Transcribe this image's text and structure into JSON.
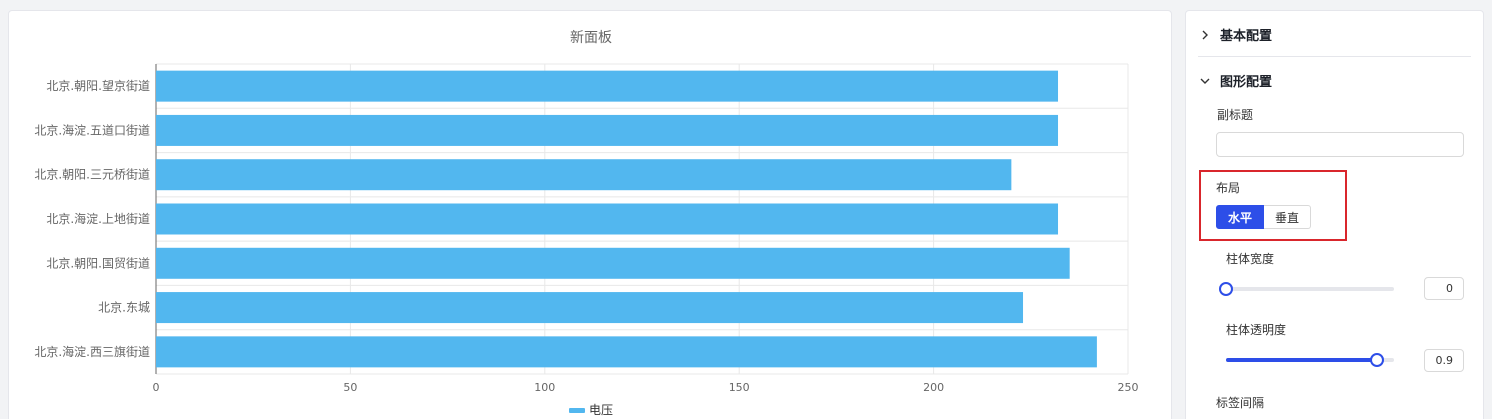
{
  "chart_panel": {
    "chart_data": {
      "type": "bar",
      "orientation": "horizontal",
      "title": "新面板",
      "categories": [
        "北京.朝阳.望京街道",
        "北京.海淀.五道口街道",
        "北京.朝阳.三元桥街道",
        "北京.海淀.上地街道",
        "北京.朝阳.国贸街道",
        "北京.东城",
        "北京.海淀.西三旗街道"
      ],
      "series": [
        {
          "name": "电压",
          "values": [
            232,
            232,
            220,
            232,
            235,
            223,
            242
          ]
        }
      ],
      "xlim": [
        0,
        250
      ],
      "xticks": [
        "0",
        "50",
        "100",
        "150",
        "200",
        "250"
      ],
      "grid": true,
      "legend_position": "bottom",
      "bar_color": "#52b7ef"
    }
  },
  "config": {
    "basic_section": {
      "label": "基本配置",
      "expanded": false
    },
    "graph_section": {
      "label": "图形配置",
      "expanded": true
    },
    "subtitle": {
      "label": "副标题",
      "value": ""
    },
    "layout": {
      "label": "布局",
      "options": [
        "水平",
        "垂直"
      ],
      "selected": "水平"
    },
    "bar_width": {
      "label": "柱体宽度",
      "value": "0",
      "level": 0
    },
    "bar_opacity": {
      "label": "柱体透明度",
      "value": "0.9",
      "level": 0.9
    },
    "label_interval": {
      "label": "标签间隔"
    },
    "colors": {
      "accent": "#2d4ee8",
      "highlight": "#d9262c"
    }
  }
}
